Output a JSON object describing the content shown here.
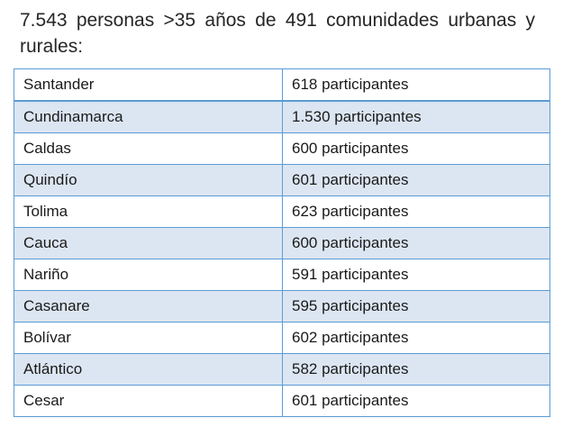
{
  "heading": "7.543 personas >35 años de 491 comunidades urbanas y rurales:",
  "rows": [
    {
      "department": "Santander",
      "participants": "618 participantes"
    },
    {
      "department": "Cundinamarca",
      "participants": "1.530 participantes"
    },
    {
      "department": "Caldas",
      "participants": "600 participantes"
    },
    {
      "department": "Quindío",
      "participants": "601 participantes"
    },
    {
      "department": "Tolima",
      "participants": "623 participantes"
    },
    {
      "department": "Cauca",
      "participants": "600 participantes"
    },
    {
      "department": "Nariño",
      "participants": "591 participantes"
    },
    {
      "department": "Casanare",
      "participants": "595 participantes"
    },
    {
      "department": "Bolívar",
      "participants": "602 participantes"
    },
    {
      "department": "Atlántico",
      "participants": "582 participantes"
    },
    {
      "department": "Cesar",
      "participants": "601 participantes"
    }
  ],
  "colors": {
    "border": "#5b9bd5",
    "band": "#dce6f2",
    "text": "#1a1a1a"
  }
}
